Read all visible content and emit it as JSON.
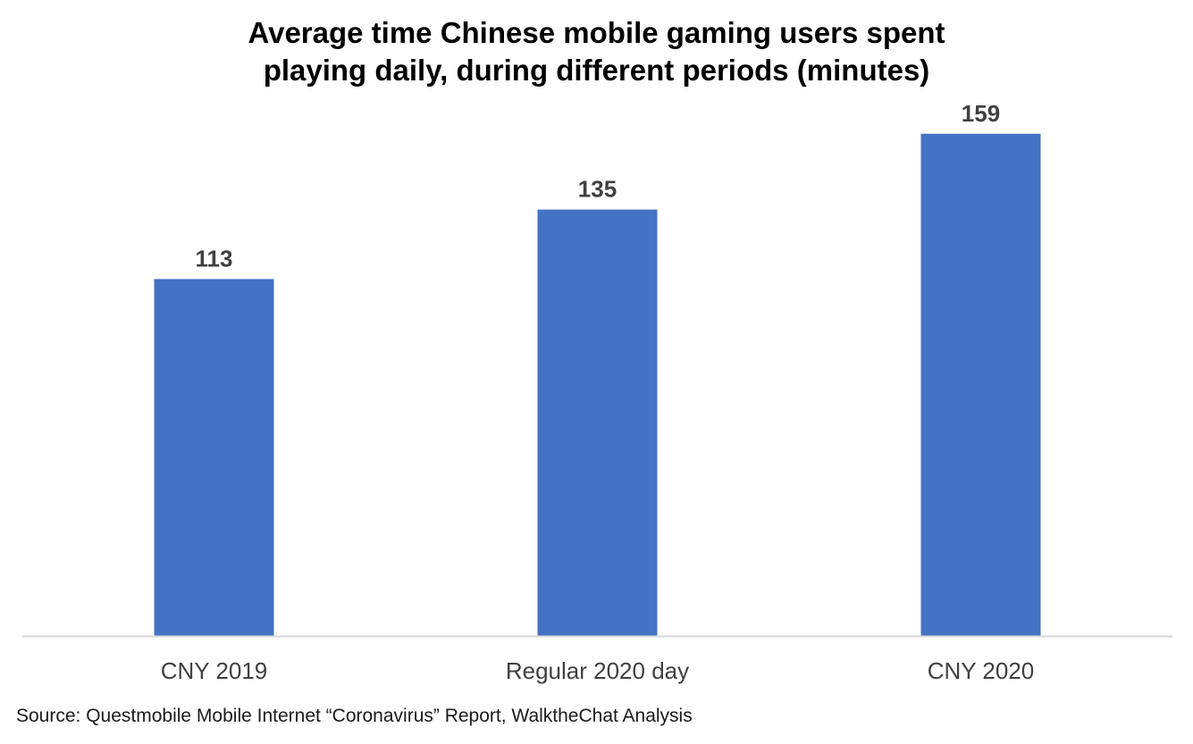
{
  "chart_data": {
    "type": "bar",
    "title_lines": [
      "Average time Chinese mobile gaming users spent",
      "playing daily, during different periods (minutes)"
    ],
    "categories": [
      "CNY 2019",
      "Regular 2020 day",
      "CNY 2020"
    ],
    "values": [
      113,
      135,
      159
    ],
    "data_labels": [
      "113",
      "135",
      "159"
    ],
    "xlabel": "",
    "ylabel": "",
    "ylim": [
      0,
      166
    ],
    "grid": false,
    "legend": "none",
    "bar_color": "#4472C4",
    "label_color": "#404040",
    "axis_color": "#d9d9d9"
  },
  "source": "Source: Questmobile Mobile Internet “Coronavirus” Report, WalktheChat Analysis"
}
